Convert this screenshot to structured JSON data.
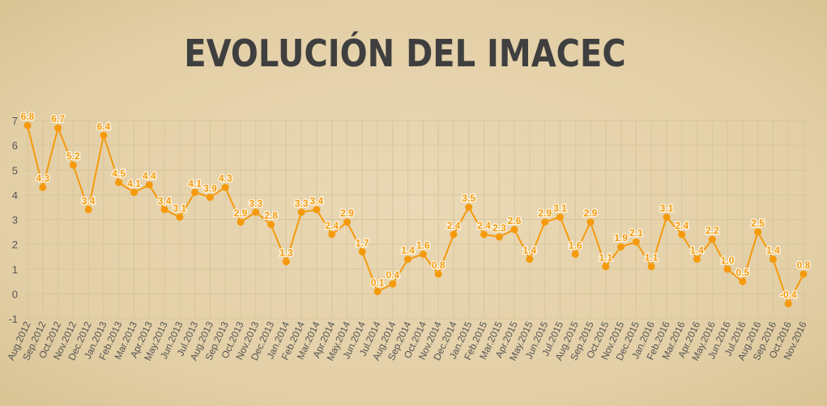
{
  "chart_data": {
    "type": "line",
    "title": "EVOLUCIÓN DEL IMACEC",
    "xlabel": "",
    "ylabel": "",
    "ylim": [
      -1,
      7
    ],
    "yticks": [
      -1,
      0,
      1,
      2,
      3,
      4,
      5,
      6,
      7
    ],
    "grid": true,
    "categories": [
      "Aug.2012",
      "Sep.2012",
      "Oct.2012",
      "Nov.2012",
      "Dec.2012",
      "Jan.2013",
      "Feb.2013",
      "Mar.2013",
      "Apr.2013",
      "May.2013",
      "Jun.2013",
      "Jul.2013",
      "Aug.2013",
      "Sep.2013",
      "Oct.2013",
      "Nov.2013",
      "Dec.2013",
      "Jan.2014",
      "Feb.2014",
      "Mar.2014",
      "Apr.2014",
      "May.2014",
      "Jun.2014",
      "Jul.2014",
      "Aug.2014",
      "Sep.2014",
      "Oct.2014",
      "Nov.2014",
      "Dec.2014",
      "Jan.2015",
      "Feb.2015",
      "Mar.2015",
      "Apr.2015",
      "May.2015",
      "Jun.2015",
      "Jul.2015",
      "Aug.2015",
      "Sep.2015",
      "Oct.2015",
      "Nov.2015",
      "Dec.2015",
      "Jan.2016",
      "Feb.2016",
      "Mar.2016",
      "Apr.2016",
      "May.2016",
      "Jun.2016",
      "Jul.2016",
      "Aug.2016",
      "Sep.2016",
      "Oct.2016",
      "Nov.2016"
    ],
    "values": [
      6.8,
      4.3,
      6.7,
      5.2,
      3.4,
      6.4,
      4.5,
      4.1,
      4.4,
      3.4,
      3.1,
      4.1,
      3.9,
      4.3,
      2.9,
      3.3,
      2.8,
      1.3,
      3.3,
      3.4,
      2.4,
      2.9,
      1.7,
      0.1,
      0.4,
      1.4,
      1.6,
      0.8,
      2.4,
      3.5,
      2.4,
      2.3,
      2.6,
      1.4,
      2.9,
      3.1,
      1.6,
      2.9,
      1.1,
      1.9,
      2.1,
      1.1,
      3.1,
      2.4,
      1.4,
      2.2,
      1.0,
      0.5,
      2.5,
      1.4,
      -0.4,
      0.8
    ],
    "labels": [
      "6.8",
      "4.3",
      "6.7",
      "5.2",
      "3.4",
      "6.4",
      "4.5",
      "4.1",
      "4.4",
      "3.4",
      "3.1",
      "4.1",
      "3.9",
      "4.3",
      "2.9",
      "3.3",
      "2.8",
      "1.3",
      "3.3",
      "3.4",
      "2.4",
      "2.9",
      "1.7",
      "0.1",
      "0.4",
      "1.4",
      "1.6",
      "0.8",
      "2.4",
      "3.5",
      "2.4",
      "2.3",
      "2.6",
      "1.4",
      "2.9",
      "3.1",
      "1.6",
      "2.9",
      "1.1",
      "1.9",
      "2.1",
      "1.1",
      "3.1",
      "2.4",
      "1.4",
      "2.2",
      "1.0",
      "0.5",
      "2.5",
      "1.4",
      "-0.4",
      "0.8"
    ],
    "line_color": "#f59a0c",
    "label_color": "#f59a0c",
    "grid_color": "#d8c59c",
    "axis_text_color": "#555555",
    "title_color": "#3f3f3f"
  }
}
